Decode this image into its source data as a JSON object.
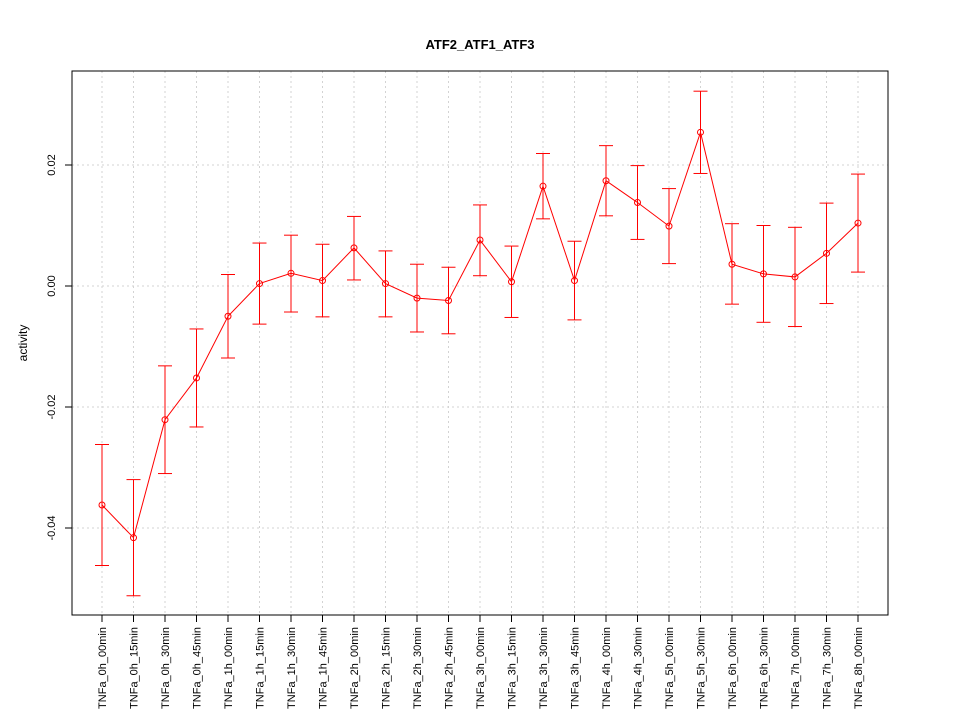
{
  "chart_data": {
    "type": "line",
    "title": "ATF2_ATF1_ATF3",
    "xlabel": "",
    "ylabel": "activity",
    "ylim": [
      -0.055,
      0.036
    ],
    "yticks": [
      -0.04,
      -0.02,
      0.0,
      0.02
    ],
    "ytick_labels": [
      "-0.04",
      "-0.02",
      "0.00",
      "0.02"
    ],
    "grid": true,
    "categories": [
      "TNFa_0h_00min",
      "TNFa_0h_15min",
      "TNFa_0h_30min",
      "TNFa_0h_45min",
      "TNFa_1h_00min",
      "TNFa_1h_15min",
      "TNFa_1h_30min",
      "TNFa_1h_45min",
      "TNFa_2h_00min",
      "TNFa_2h_15min",
      "TNFa_2h_30min",
      "TNFa_2h_45min",
      "TNFa_3h_00min",
      "TNFa_3h_15min",
      "TNFa_3h_30min",
      "TNFa_3h_45min",
      "TNFa_4h_00min",
      "TNFa_4h_30min",
      "TNFa_5h_00min",
      "TNFa_5h_30min",
      "TNFa_6h_00min",
      "TNFa_6h_30min",
      "TNFa_7h_00min",
      "TNFa_7h_30min",
      "TNFa_8h_00min"
    ],
    "series": [
      {
        "color": "#ff0000",
        "values": [
          -0.0362,
          -0.0416,
          -0.0221,
          -0.0152,
          -0.005,
          0.0004,
          0.0021,
          0.0009,
          0.0063,
          0.0004,
          -0.002,
          -0.0024,
          0.0076,
          0.0007,
          0.0165,
          0.0009,
          0.0174,
          0.0138,
          0.0099,
          0.0254,
          0.0036,
          0.002,
          0.0015,
          0.0054,
          0.0104
        ],
        "lower": [
          -0.0462,
          -0.0512,
          -0.031,
          -0.0233,
          -0.0119,
          -0.0063,
          -0.0043,
          -0.0051,
          0.001,
          -0.0051,
          -0.0076,
          -0.0079,
          0.0017,
          -0.0052,
          0.0111,
          -0.0056,
          0.0116,
          0.0077,
          0.0037,
          0.0186,
          -0.003,
          -0.006,
          -0.0067,
          -0.0029,
          0.0023
        ],
        "upper": [
          -0.0262,
          -0.032,
          -0.0132,
          -0.0071,
          0.0019,
          0.0071,
          0.0084,
          0.0069,
          0.0115,
          0.0058,
          0.0036,
          0.0031,
          0.0134,
          0.0066,
          0.0219,
          0.0074,
          0.0232,
          0.0199,
          0.0161,
          0.0322,
          0.0103,
          0.01,
          0.0097,
          0.0137,
          0.0185
        ]
      }
    ]
  }
}
